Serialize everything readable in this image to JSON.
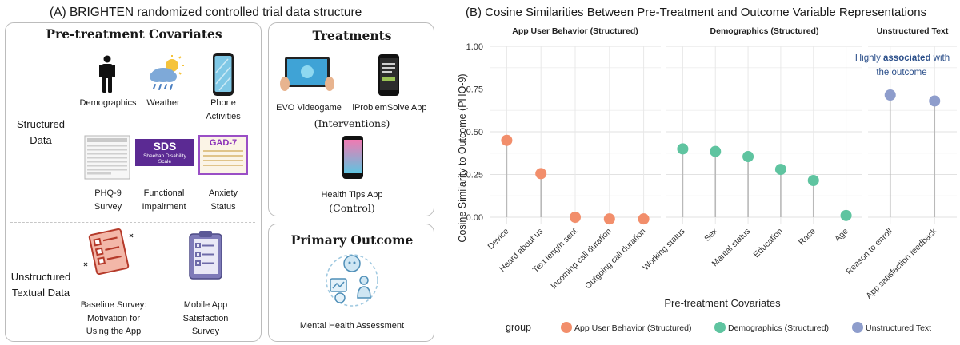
{
  "panel_a": {
    "title": "(A) BRIGHTEN randomized controlled trial data structure",
    "covariates": {
      "heading": "Pre-treatment Covariates",
      "structured_label": [
        "Structured",
        "Data"
      ],
      "unstructured_label": [
        "Unstructured",
        "Textual Data"
      ],
      "items": {
        "demographics": [
          "Demographics"
        ],
        "weather": [
          "Weather"
        ],
        "phone": [
          "Phone",
          "Activities"
        ],
        "phq9": [
          "PHQ-9",
          "Survey"
        ],
        "functional": [
          "Functional",
          "Impairment"
        ],
        "anxiety": [
          "Anxiety",
          "Status"
        ],
        "baseline": [
          "Baseline Survey:",
          "Motivation for",
          "Using the App"
        ],
        "mobile": [
          "Mobile App",
          "Satisfaction",
          "Survey"
        ]
      },
      "sds_badge": {
        "title": "SDS",
        "sub": [
          "Sheehan Disability",
          "Scale"
        ]
      },
      "gad_badge": "GAD-7"
    },
    "treatments": {
      "heading": "Treatments",
      "evo": "EVO Videogame",
      "iproblem": "iProblemSolve App",
      "interventions": "(Interventions)",
      "health_tips": "Health Tips App",
      "control": "(Control)"
    },
    "outcome": {
      "heading": "Primary Outcome",
      "label": "Mental Health Assessment"
    }
  },
  "panel_b": {
    "title": "(B) Cosine Similarities Between Pre-Treatment and Outcome Variable Representations",
    "annotation": {
      "pre": "Highly ",
      "bold": "associated",
      "post": " with",
      "line2": "the outcome"
    }
  },
  "chart_data": {
    "type": "scatter",
    "style": "lollipop",
    "ylabel": "Cosine Similarity to Outcome (PHQ-9)",
    "xlabel": "Pre-treatment Covariates",
    "ylim": [
      0,
      1.0
    ],
    "yticks": [
      "0.00",
      "0.25",
      "0.50",
      "0.75",
      "1.00"
    ],
    "grid": true,
    "legend": {
      "title": "group",
      "placement": "bottom",
      "entries": [
        "App User Behavior (Structured)",
        "Demographics (Structured)",
        "Unstructured Text"
      ]
    },
    "colors": {
      "App User Behavior (Structured)": "#F28E6B",
      "Demographics (Structured)": "#5FC4A0",
      "Unstructured Text": "#8E9DCC"
    },
    "facets": [
      {
        "title": "App User Behavior (Structured)",
        "group": "App User Behavior (Structured)",
        "categories": [
          "Device",
          "Heard about us",
          "Text length sent",
          "Incoming call duration",
          "Outgoing call duration"
        ],
        "values": [
          0.45,
          0.255,
          0.0,
          -0.01,
          -0.01
        ]
      },
      {
        "title": "Demographics (Structured)",
        "group": "Demographics (Structured)",
        "categories": [
          "Working status",
          "Sex",
          "Marital status",
          "Education",
          "Race",
          "Age"
        ],
        "values": [
          0.4,
          0.385,
          0.355,
          0.28,
          0.215,
          0.01
        ]
      },
      {
        "title": "Unstructured Text",
        "group": "Unstructured Text",
        "categories": [
          "Reason to enroll",
          "App satisfaction feedback"
        ],
        "values": [
          0.715,
          0.68
        ]
      }
    ]
  }
}
